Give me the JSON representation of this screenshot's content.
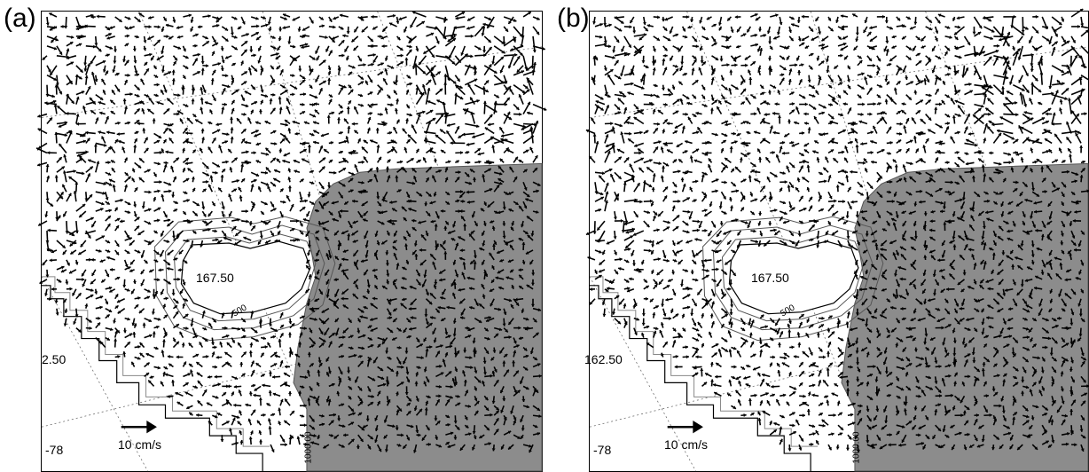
{
  "panels": [
    {
      "label": "(a)",
      "center_label": "167.50",
      "depth_label": "500",
      "lon_label_left": "2.50",
      "lat_label": "-78",
      "scale_label": "10 cm/s",
      "contour_label_bottom": "1000.00"
    },
    {
      "label": "(b)",
      "center_label": "167.50",
      "depth_label": "500",
      "lon_label_left": "162.50",
      "lat_label": "-78",
      "scale_label": "10 cm/s",
      "contour_label_bottom": "1000.00"
    }
  ],
  "colors": {
    "land": "#8c8c8c",
    "arrows": "#000000",
    "grid": "#6e6e6e",
    "ice_contour": "#555555"
  }
}
